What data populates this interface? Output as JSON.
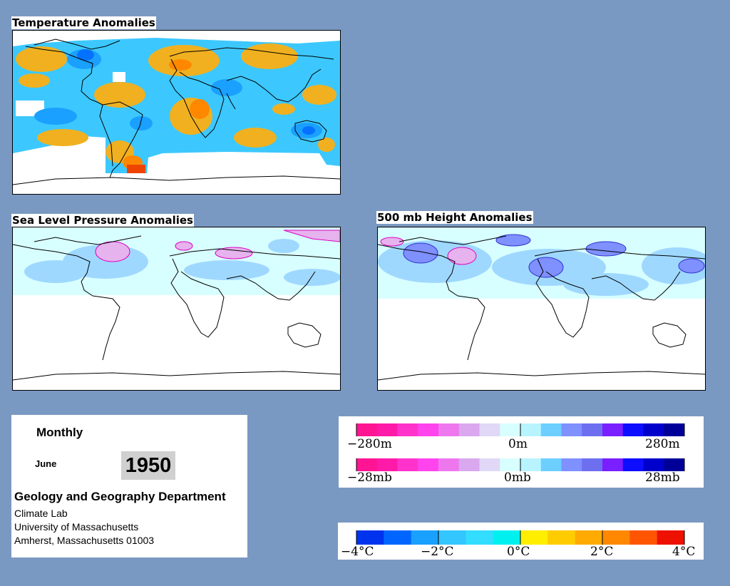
{
  "maps": {
    "temperature": {
      "title": "Temperature Anomalies"
    },
    "slp": {
      "title": "Sea Level Pressure Anomalies"
    },
    "height500": {
      "title": "500 mb Height Anomalies"
    }
  },
  "info": {
    "period": "Monthly",
    "month": "June",
    "year": "1950",
    "department": "Geology and Geography Department",
    "lines": [
      "Climate Lab",
      "University of Massachusetts",
      "Amherst, Massachusetts 01003"
    ]
  },
  "legend_height": {
    "colors": [
      "#ff1493",
      "#ff1aa8",
      "#ff33cc",
      "#ff44ee",
      "#ee77ee",
      "#d9a8ee",
      "#e0d8f6",
      "#d8ffff",
      "#b8f4ff",
      "#6ccfff",
      "#7f90ff",
      "#6e6ef0",
      "#7a1fff",
      "#0d0dff",
      "#0000cc",
      "#000099"
    ],
    "labels": [
      "−280m",
      "0m",
      "280m"
    ]
  },
  "legend_pressure": {
    "colors": [
      "#ff1493",
      "#ff1aa8",
      "#ff33cc",
      "#ff44ee",
      "#ee77ee",
      "#d9a8ee",
      "#e0d8f6",
      "#d8ffff",
      "#b8f4ff",
      "#6ccfff",
      "#7f90ff",
      "#6e6ef0",
      "#7a1fff",
      "#0d0dff",
      "#0000cc",
      "#000099"
    ],
    "labels": [
      "−28mb",
      "0mb",
      "28mb"
    ]
  },
  "legend_temperature": {
    "colors": [
      "#0033ee",
      "#0066ff",
      "#1aa0ff",
      "#33c6ff",
      "#33ddff",
      "#00f0f0",
      "#ffee00",
      "#ffcc00",
      "#ffaa00",
      "#ff8800",
      "#ff5500",
      "#ee1100"
    ],
    "labels": [
      "−4°C",
      "−2°C",
      "0°C",
      "2°C",
      "4°C"
    ]
  },
  "colors": {
    "background": "#7a99c2",
    "warm": "#f0b020",
    "cool": "#33c6ff",
    "neg_light": "#d8ffff",
    "neg_mid": "#9fd8ff",
    "pos_pink": "#e6b3ee"
  }
}
